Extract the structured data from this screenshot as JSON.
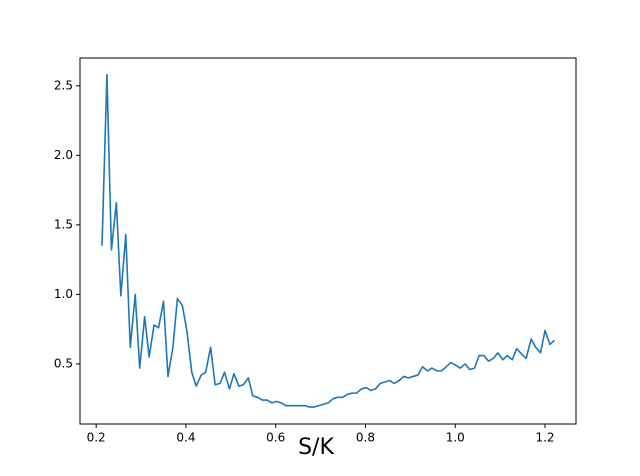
{
  "chart_data": {
    "type": "line",
    "x_label": "S/K",
    "x": [
      0.213,
      0.224,
      0.234,
      0.245,
      0.255,
      0.266,
      0.276,
      0.287,
      0.297,
      0.308,
      0.318,
      0.329,
      0.339,
      0.35,
      0.36,
      0.371,
      0.381,
      0.392,
      0.402,
      0.413,
      0.423,
      0.434,
      0.444,
      0.455,
      0.465,
      0.476,
      0.486,
      0.497,
      0.507,
      0.518,
      0.528,
      0.539,
      0.549,
      0.56,
      0.57,
      0.581,
      0.591,
      0.602,
      0.612,
      0.623,
      0.633,
      0.644,
      0.654,
      0.665,
      0.675,
      0.686,
      0.696,
      0.707,
      0.717,
      0.728,
      0.738,
      0.749,
      0.759,
      0.77,
      0.78,
      0.791,
      0.801,
      0.812,
      0.822,
      0.833,
      0.843,
      0.854,
      0.864,
      0.875,
      0.885,
      0.896,
      0.906,
      0.917,
      0.927,
      0.938,
      0.948,
      0.959,
      0.969,
      0.98,
      0.99,
      1.001,
      1.011,
      1.022,
      1.032,
      1.043,
      1.053,
      1.064,
      1.074,
      1.085,
      1.095,
      1.106,
      1.116,
      1.127,
      1.137,
      1.148,
      1.158,
      1.169,
      1.179,
      1.19,
      1.2,
      1.211,
      1.221
    ],
    "series": [
      {
        "color": "#1f77b4",
        "values": [
          1.35,
          2.58,
          1.32,
          1.66,
          0.99,
          1.43,
          0.62,
          1.0,
          0.47,
          0.84,
          0.55,
          0.78,
          0.76,
          0.95,
          0.41,
          0.62,
          0.97,
          0.92,
          0.74,
          0.44,
          0.34,
          0.42,
          0.44,
          0.62,
          0.35,
          0.36,
          0.44,
          0.32,
          0.43,
          0.34,
          0.35,
          0.4,
          0.27,
          0.26,
          0.24,
          0.24,
          0.22,
          0.23,
          0.22,
          0.2,
          0.2,
          0.2,
          0.2,
          0.2,
          0.19,
          0.19,
          0.2,
          0.21,
          0.22,
          0.25,
          0.26,
          0.26,
          0.28,
          0.29,
          0.29,
          0.32,
          0.33,
          0.31,
          0.32,
          0.36,
          0.37,
          0.38,
          0.36,
          0.38,
          0.41,
          0.4,
          0.41,
          0.42,
          0.48,
          0.45,
          0.47,
          0.45,
          0.45,
          0.48,
          0.51,
          0.49,
          0.47,
          0.5,
          0.46,
          0.47,
          0.56,
          0.56,
          0.52,
          0.54,
          0.58,
          0.53,
          0.56,
          0.53,
          0.61,
          0.57,
          0.54,
          0.68,
          0.62,
          0.58,
          0.74,
          0.64,
          0.67
        ]
      }
    ],
    "xlim": [
      0.164,
      1.269
    ],
    "ylim": [
      0.068,
      2.7
    ],
    "xticks": [
      0.2,
      0.4,
      0.6,
      0.8,
      {
        "value": 1.0,
        "label": "1.0"
      },
      1.2
    ],
    "yticks": [
      0.5,
      {
        "value": 1.0,
        "label": "1.0"
      },
      1.5,
      {
        "value": 2.0,
        "label": "2.0"
      },
      2.5
    ]
  }
}
